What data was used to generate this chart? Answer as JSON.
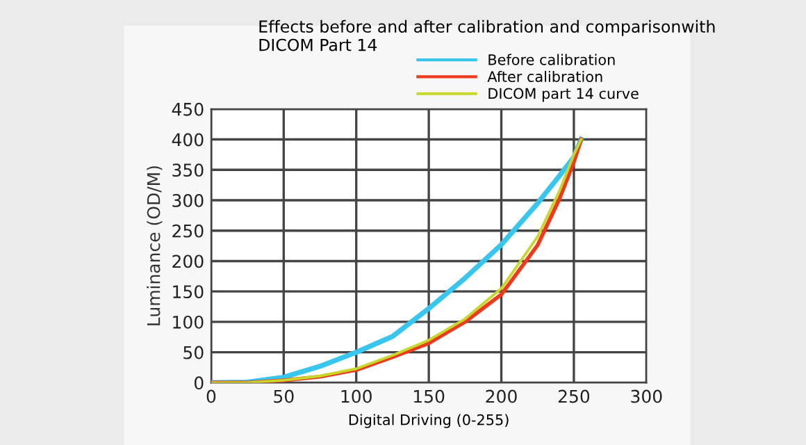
{
  "chart_data": {
    "type": "line",
    "title": "Effects before and after calibration and comparisonwith\nDICOM Part 14",
    "xlabel": "Digital Driving (0-255)",
    "ylabel": "Luminance (OD/M)",
    "x": [
      0,
      25,
      50,
      75,
      100,
      125,
      150,
      175,
      200,
      225,
      240,
      250,
      255
    ],
    "series": [
      {
        "name": "Before calibration",
        "color": "#38c5ee",
        "values": [
          0,
          1,
          9,
          27,
          50,
          76,
          122,
          172,
          227,
          295,
          340,
          371,
          400
        ]
      },
      {
        "name": "After calibration",
        "color": "#ee3a1f",
        "values": [
          0,
          0,
          4,
          10,
          21,
          42,
          65,
          100,
          145,
          226,
          302,
          363,
          400
        ]
      },
      {
        "name": "DICOM part 14 curve",
        "color": "#c8d82a",
        "values": [
          0,
          0,
          4,
          11,
          23,
          45,
          70,
          105,
          155,
          240,
          315,
          375,
          400
        ]
      }
    ],
    "xlim": [
      0,
      300
    ],
    "xticks": [
      0,
      50,
      100,
      150,
      200,
      250,
      300
    ],
    "ylim": [
      0,
      450
    ],
    "yticks": [
      0,
      50,
      100,
      150,
      200,
      250,
      300,
      350,
      400,
      450
    ],
    "grid": true,
    "legend": "top right",
    "line_style": "solid",
    "marker": "none"
  }
}
